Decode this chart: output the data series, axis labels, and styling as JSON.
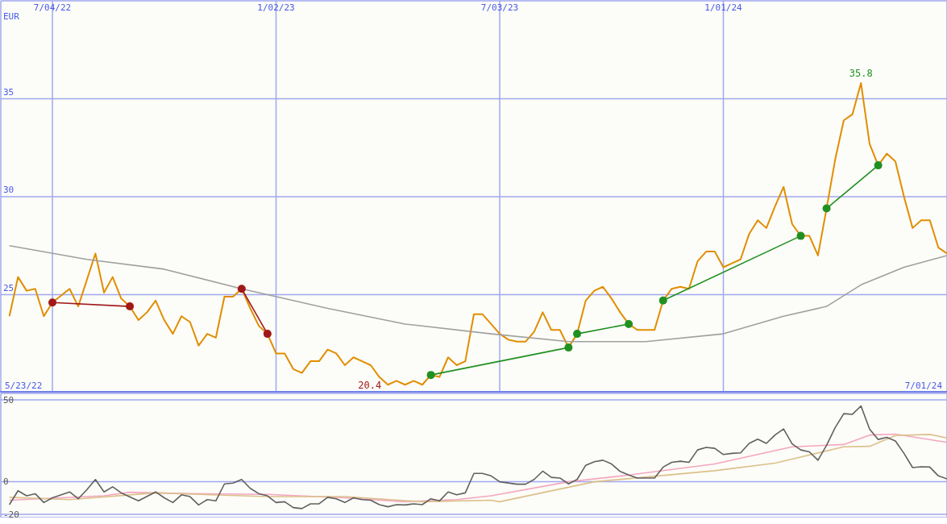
{
  "chart_data": [
    {
      "type": "line",
      "ylabel": "EUR",
      "xlim": [
        "2022-05-23",
        "2024-07-01"
      ],
      "xticks": [
        {
          "value": "2022-07-04",
          "label": "7/04/22"
        },
        {
          "value": "2023-01-02",
          "label": "1/02/23"
        },
        {
          "value": "2023-07-03",
          "label": "7/03/23"
        },
        {
          "value": "2024-01-01",
          "label": "1/01/24"
        }
      ],
      "ylim": [
        20,
        40
      ],
      "yticks": [
        25,
        30,
        35
      ],
      "grid": true,
      "annotations": [
        "5/23/22",
        "7/01/24",
        {
          "text": "35.8",
          "x": "2024-04-22",
          "y": 35.8
        },
        {
          "text": "20.4",
          "x": "2023-04-03",
          "y": 20.4
        }
      ],
      "series": [
        {
          "color": "#e08e00",
          "x": [
            "2022-05-30",
            "2022-06-06",
            "2022-06-13",
            "2022-06-20",
            "2022-06-27",
            "2022-07-04",
            "2022-07-18",
            "2022-07-25",
            "2022-08-08",
            "2022-08-15",
            "2022-08-22",
            "2022-08-29",
            "2022-09-05",
            "2022-09-12",
            "2022-09-19",
            "2022-09-26",
            "2022-10-03",
            "2022-10-10",
            "2022-10-17",
            "2022-10-24",
            "2022-10-31",
            "2022-11-07",
            "2022-11-14",
            "2022-11-21",
            "2022-11-28",
            "2022-12-05",
            "2022-12-12",
            "2022-12-19",
            "2022-12-26",
            "2023-01-02",
            "2023-01-09",
            "2023-01-16",
            "2023-01-23",
            "2023-01-30",
            "2023-02-06",
            "2023-02-13",
            "2023-02-20",
            "2023-02-27",
            "2023-03-06",
            "2023-03-13",
            "2023-03-20",
            "2023-03-27",
            "2023-04-03",
            "2023-04-10",
            "2023-04-17",
            "2023-04-24",
            "2023-05-01",
            "2023-05-08",
            "2023-05-15",
            "2023-05-22",
            "2023-05-29",
            "2023-06-05",
            "2023-06-12",
            "2023-06-19",
            "2023-06-26",
            "2023-07-03",
            "2023-07-10",
            "2023-07-17",
            "2023-07-24",
            "2023-07-31",
            "2023-08-07",
            "2023-08-14",
            "2023-08-21",
            "2023-08-28",
            "2023-09-04",
            "2023-09-11",
            "2023-09-18",
            "2023-09-25",
            "2023-10-02",
            "2023-10-09",
            "2023-10-16",
            "2023-10-23",
            "2023-10-30",
            "2023-11-06",
            "2023-11-13",
            "2023-11-20",
            "2023-11-27",
            "2023-12-04",
            "2023-12-11",
            "2023-12-18",
            "2023-12-25",
            "2024-01-01",
            "2024-01-08",
            "2024-01-15",
            "2024-01-22",
            "2024-01-29",
            "2024-02-05",
            "2024-02-12",
            "2024-02-19",
            "2024-02-26",
            "2024-03-04",
            "2024-03-11",
            "2024-03-18",
            "2024-03-25",
            "2024-04-01",
            "2024-04-08",
            "2024-04-15",
            "2024-04-22",
            "2024-04-29",
            "2024-05-06",
            "2024-05-13",
            "2024-05-20",
            "2024-05-27",
            "2024-06-03",
            "2024-06-10",
            "2024-06-17",
            "2024-06-24",
            "2024-07-01"
          ],
          "values": [
            23.9,
            25.9,
            25.2,
            25.3,
            23.9,
            24.6,
            25.3,
            24.4,
            27.1,
            25.1,
            25.9,
            24.8,
            24.4,
            23.7,
            24.1,
            24.7,
            23.7,
            23.0,
            23.9,
            23.6,
            22.4,
            23.0,
            22.8,
            24.9,
            24.9,
            25.3,
            24.3,
            23.4,
            23.0,
            22.0,
            22.0,
            21.2,
            21.0,
            21.6,
            21.6,
            22.2,
            22.0,
            21.4,
            21.8,
            21.6,
            21.4,
            20.8,
            20.4,
            20.6,
            20.4,
            20.6,
            20.4,
            20.9,
            20.8,
            21.8,
            21.4,
            21.6,
            24.0,
            24.0,
            23.5,
            23.0,
            22.7,
            22.6,
            22.6,
            23.1,
            24.1,
            23.2,
            23.2,
            22.3,
            23.0,
            24.7,
            25.2,
            25.4,
            24.8,
            24.1,
            23.5,
            23.2,
            23.2,
            23.2,
            24.7,
            25.3,
            25.4,
            25.3,
            26.7,
            27.2,
            27.2,
            26.4,
            26.6,
            26.8,
            28.1,
            28.8,
            28.4,
            29.5,
            30.5,
            28.6,
            28.0,
            28.0,
            27.0,
            29.4,
            31.9,
            33.9,
            34.2,
            35.8,
            32.7,
            31.6,
            32.2,
            31.8,
            30.0,
            28.4,
            28.8,
            28.8,
            27.4,
            27.1
          ]
        },
        {
          "color": "#a0a0a0",
          "x": [
            "2022-05-30",
            "2022-08-01",
            "2022-10-03",
            "2022-12-05",
            "2023-02-13",
            "2023-04-17",
            "2023-06-26",
            "2023-08-28",
            "2023-10-30",
            "2024-01-01",
            "2024-02-19",
            "2024-03-25",
            "2024-04-22",
            "2024-05-27",
            "2024-07-01"
          ],
          "values": [
            27.5,
            26.8,
            26.3,
            25.3,
            24.3,
            23.5,
            23.0,
            22.6,
            22.6,
            23.0,
            23.9,
            24.4,
            25.5,
            26.4,
            27.0
          ]
        },
        {
          "color": "#a01818",
          "marker": "circle",
          "x": [
            "2022-07-04",
            "2022-09-05"
          ],
          "values": [
            24.6,
            24.4
          ]
        },
        {
          "color": "#a01818",
          "marker": "circle",
          "x": [
            "2022-12-05",
            "2022-12-26"
          ],
          "values": [
            25.3,
            23.0
          ]
        },
        {
          "color": "#209020",
          "marker": "circle",
          "x": [
            "2023-05-08",
            "2023-08-28"
          ],
          "values": [
            20.9,
            22.3
          ]
        },
        {
          "color": "#209020",
          "marker": "circle",
          "x": [
            "2023-09-04",
            "2023-10-16"
          ],
          "values": [
            23.0,
            23.5
          ]
        },
        {
          "color": "#209020",
          "marker": "circle",
          "x": [
            "2023-11-13",
            "2024-03-04"
          ],
          "values": [
            24.7,
            28.0
          ]
        },
        {
          "color": "#209020",
          "marker": "circle",
          "x": [
            "2024-03-25",
            "2024-05-06"
          ],
          "values": [
            29.4,
            31.6
          ]
        }
      ]
    },
    {
      "type": "line",
      "xlim": [
        "2022-05-23",
        "2024-07-01"
      ],
      "xticks": [
        {
          "value": "2022-07-04",
          "label": null
        },
        {
          "value": "2023-01-02",
          "label": null
        },
        {
          "value": "2023-07-03",
          "label": null
        },
        {
          "value": "2024-01-01",
          "label": null
        }
      ],
      "ylim": [
        -22,
        54
      ],
      "yticks": [
        -20,
        0,
        50
      ],
      "grid": true,
      "tick_labels": "y",
      "series": [
        {
          "color": "#f4a6c0",
          "x": [
            "2022-05-30",
            "2022-08-15",
            "2022-09-05",
            "2022-10-24",
            "2022-12-26",
            "2023-02-27",
            "2023-04-17",
            "2023-05-29",
            "2023-06-26",
            "2023-08-28",
            "2023-10-16",
            "2023-12-25",
            "2024-02-26",
            "2024-04-08",
            "2024-04-29",
            "2024-05-20",
            "2024-07-01"
          ],
          "values": [
            -11.4,
            -8.7,
            -6.5,
            -7.4,
            -7.8,
            -9.9,
            -12.3,
            -11.0,
            -8.7,
            -0.1,
            4.0,
            10.8,
            21.3,
            22.7,
            28.5,
            29.1,
            24.0
          ]
        },
        {
          "color": "#dcc08a",
          "x": [
            "2022-05-30",
            "2022-07-18",
            "2022-09-26",
            "2022-12-26",
            "2023-02-27",
            "2023-05-01",
            "2023-06-26",
            "2023-07-03",
            "2023-09-18",
            "2023-12-25",
            "2024-02-12",
            "2024-04-08",
            "2024-04-29",
            "2024-05-20",
            "2024-06-17",
            "2024-07-01"
          ],
          "values": [
            -9.6,
            -11.0,
            -6.9,
            -9.2,
            -9.2,
            -12.3,
            -11.4,
            -12.3,
            -0.1,
            6.7,
            11.3,
            21.3,
            21.6,
            28.2,
            28.9,
            26.7
          ]
        },
        {
          "color": "#606060",
          "x": [
            "2022-05-30",
            "2022-06-06",
            "2022-06-13",
            "2022-06-20",
            "2022-06-27",
            "2022-07-04",
            "2022-07-18",
            "2022-07-25",
            "2022-08-01",
            "2022-08-08",
            "2022-08-15",
            "2022-08-22",
            "2022-08-29",
            "2022-09-12",
            "2022-09-26",
            "2022-10-03",
            "2022-10-10",
            "2022-10-17",
            "2022-10-24",
            "2022-10-31",
            "2022-11-07",
            "2022-11-14",
            "2022-11-21",
            "2022-11-28",
            "2022-12-05",
            "2022-12-12",
            "2022-12-19",
            "2022-12-26",
            "2023-01-02",
            "2023-01-09",
            "2023-01-16",
            "2023-01-23",
            "2023-01-30",
            "2023-02-06",
            "2023-02-13",
            "2023-02-20",
            "2023-02-27",
            "2023-03-06",
            "2023-03-13",
            "2023-03-20",
            "2023-03-27",
            "2023-04-03",
            "2023-04-10",
            "2023-04-17",
            "2023-04-24",
            "2023-05-01",
            "2023-05-08",
            "2023-05-15",
            "2023-05-22",
            "2023-05-29",
            "2023-06-05",
            "2023-06-12",
            "2023-06-19",
            "2023-06-26",
            "2023-07-03",
            "2023-07-17",
            "2023-07-24",
            "2023-07-31",
            "2023-08-07",
            "2023-08-14",
            "2023-08-21",
            "2023-08-28",
            "2023-09-04",
            "2023-09-11",
            "2023-09-18",
            "2023-09-25",
            "2023-10-02",
            "2023-10-09",
            "2023-10-16",
            "2023-10-23",
            "2023-11-06",
            "2023-11-13",
            "2023-11-20",
            "2023-11-27",
            "2023-12-04",
            "2023-12-11",
            "2023-12-18",
            "2023-12-25",
            "2024-01-01",
            "2024-01-08",
            "2024-01-15",
            "2024-01-22",
            "2024-01-29",
            "2024-02-05",
            "2024-02-12",
            "2024-02-19",
            "2024-02-26",
            "2024-03-04",
            "2024-03-11",
            "2024-03-18",
            "2024-03-25",
            "2024-04-01",
            "2024-04-08",
            "2024-04-15",
            "2024-04-22",
            "2024-04-29",
            "2024-05-06",
            "2024-05-13",
            "2024-05-20",
            "2024-05-27",
            "2024-06-03",
            "2024-06-10",
            "2024-06-17",
            "2024-06-24",
            "2024-07-01"
          ],
          "values": [
            -14.1,
            -5.6,
            -8.7,
            -7.4,
            -12.8,
            -9.9,
            -6.3,
            -10.5,
            -5.0,
            1.3,
            -6.3,
            -3.2,
            -6.9,
            -11.8,
            -6.3,
            -9.9,
            -12.8,
            -8.1,
            -9.2,
            -14.3,
            -11.0,
            -11.8,
            -1.4,
            -0.9,
            1.3,
            -4.1,
            -7.4,
            -8.7,
            -12.8,
            -12.3,
            -15.9,
            -16.5,
            -13.6,
            -13.6,
            -9.6,
            -10.5,
            -12.8,
            -9.9,
            -11.0,
            -11.4,
            -14.1,
            -15.4,
            -14.1,
            -14.3,
            -13.6,
            -14.1,
            -10.5,
            -11.8,
            -6.3,
            -8.1,
            -6.9,
            5.0,
            5.0,
            3.5,
            -0.1,
            -1.6,
            -1.6,
            1.3,
            6.4,
            2.6,
            2.2,
            -1.4,
            1.3,
            10.0,
            12.2,
            13.1,
            10.8,
            6.2,
            4.0,
            2.2,
            2.2,
            8.9,
            11.8,
            12.5,
            11.8,
            19.4,
            20.9,
            20.4,
            16.6,
            17.3,
            17.6,
            23.4,
            26.0,
            23.4,
            28.5,
            32.2,
            23.1,
            19.4,
            18.2,
            13.1,
            22.2,
            33.1,
            41.6,
            41.2,
            46.3,
            32.2,
            25.8,
            27.1,
            24.9,
            17.3,
            8.6,
            9.1,
            8.9,
            3.5,
            1.7
          ]
        }
      ]
    }
  ]
}
